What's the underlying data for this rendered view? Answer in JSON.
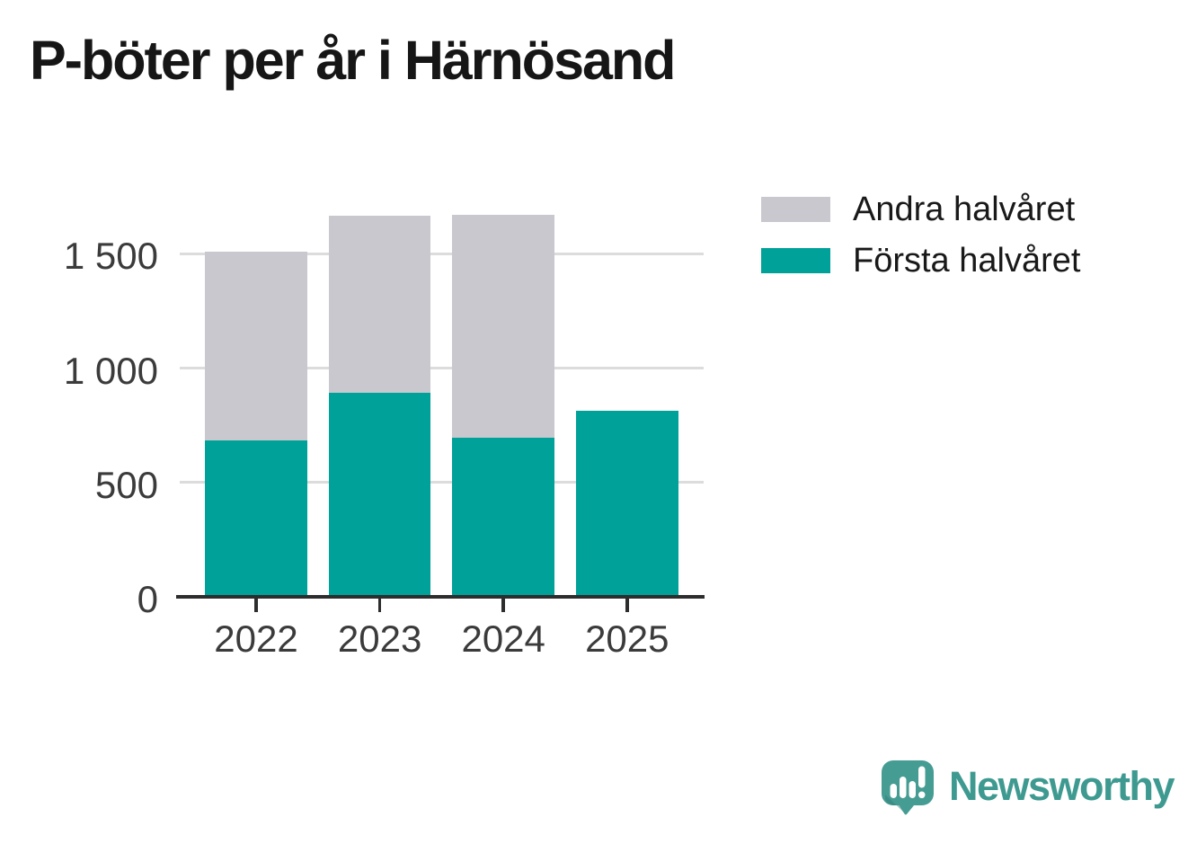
{
  "header": {
    "title": "P-böter per år i Härnösand"
  },
  "legend": {
    "items": [
      {
        "label": "Andra halvåret",
        "color": "#c9c8cf"
      },
      {
        "label": "Första halvåret",
        "color": "#00a199"
      }
    ]
  },
  "chart_data": {
    "type": "bar",
    "stacked": true,
    "title": "P-böter per år i Härnösand",
    "categories": [
      "2022",
      "2023",
      "2024",
      "2025"
    ],
    "series": [
      {
        "name": "Första halvåret",
        "color": "#00a199",
        "values": [
          685,
          890,
          695,
          815
        ]
      },
      {
        "name": "Andra halvåret",
        "color": "#c9c8cf",
        "values": [
          825,
          775,
          975,
          null
        ]
      }
    ],
    "totals": [
      1510,
      1665,
      1670,
      815
    ],
    "ylim": [
      0,
      1700
    ],
    "yticks": [
      {
        "value": 0,
        "label": "0"
      },
      {
        "value": 500,
        "label": "500"
      },
      {
        "value": 1000,
        "label": "1 000"
      },
      {
        "value": 1500,
        "label": "1 500"
      }
    ],
    "grid": true,
    "legend_position": "top-right"
  },
  "branding": {
    "logo_text": "Newsworthy"
  },
  "colors": {
    "first_half": "#00a199",
    "second_half": "#c9c8cf",
    "gridline": "#dcdcdc",
    "axis": "#2d2d2d",
    "axis_label": "#3b3b3b",
    "title_text": "#161616",
    "logo_text": "#3e9a90",
    "logo_icon": "#459c93"
  }
}
